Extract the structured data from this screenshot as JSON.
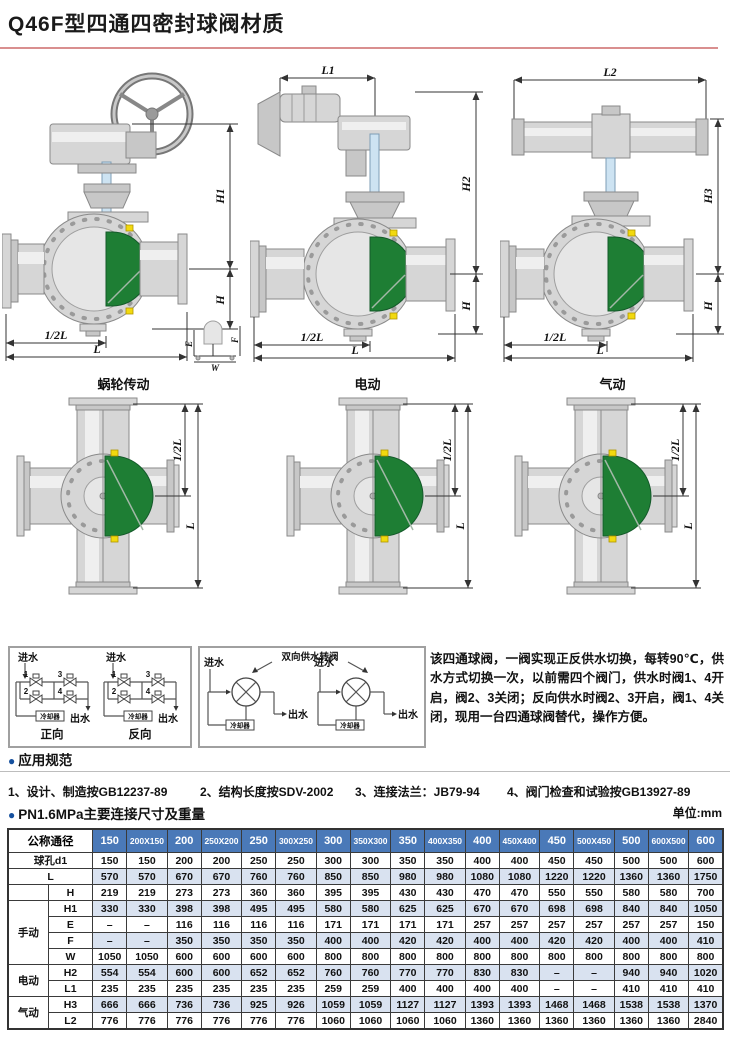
{
  "page": {
    "title": "Q46F型四通四密封球阀材质"
  },
  "colors": {
    "accent_red_line": "#d98f8f",
    "bullet_blue": "#15509e",
    "table_header_blue": "#4a79b8",
    "table_shaded_row": "#d9e2f0",
    "ball_green": "#1e7e34",
    "seal_yellow": "#f2d90f"
  },
  "valves": {
    "worm": {
      "caption": "蜗轮传动",
      "dim_h1": "H1",
      "dim_h": "H",
      "dim_half_l": "1/2L",
      "dim_l": "L",
      "dim_e": "E",
      "dim_f": "F",
      "dim_w": "W"
    },
    "electric": {
      "caption": "电动",
      "dim_l1": "L1",
      "dim_h2": "H2",
      "dim_h": "H",
      "dim_half_l": "1/2L",
      "dim_l": "L"
    },
    "pneumatic": {
      "caption": "气动",
      "dim_l2": "L2",
      "dim_h3": "H3",
      "dim_h": "H",
      "dim_half_l": "1/2L",
      "dim_l": "L"
    },
    "cross": {
      "dim_half_l": "1/2L",
      "dim_l": "L"
    }
  },
  "flow_left": {
    "inlet": "进水",
    "outlet": "出水",
    "cooler": "冷却器",
    "v1": "1",
    "v2": "2",
    "v3": "3",
    "v4": "4",
    "forward": "正向",
    "reverse": "反向"
  },
  "flow_mid": {
    "title": "双向供水转阀",
    "inlet": "进水",
    "outlet": "出水",
    "cooler": "冷却器"
  },
  "description": "该四通球阀，一阀实现正反供水切换，每转90℃，供水方式切换一次，以前需四个阀门，供水时阀1、4开启，阀2、3关闭；反向供水时阀2、3开启，阀1、4关闭，现用一台四通球阀替代，操作方便。",
  "application": {
    "bullet": "●",
    "heading": "应用规范",
    "items": [
      "1、设计、制造按GB12237-89",
      "2、结构长度按SDV-2002",
      "3、连接法兰：JB79-94",
      "4、阀门检查和试验按GB13927-89"
    ]
  },
  "table_section": {
    "bullet": "●",
    "heading": "PN1.6MPa主要连接尺寸及重量",
    "unit": "单位:mm"
  },
  "table": {
    "header_label": "公称通径",
    "columns": [
      "150",
      "200X150",
      "200",
      "250X200",
      "250",
      "300X250",
      "300",
      "350X300",
      "350",
      "400X350",
      "400",
      "450X400",
      "450",
      "500X450",
      "500",
      "600X500",
      "600"
    ],
    "rows": [
      {
        "label": "球孔d1",
        "span": 2,
        "shaded": false,
        "values": [
          "150",
          "150",
          "200",
          "200",
          "250",
          "250",
          "300",
          "300",
          "350",
          "350",
          "400",
          "400",
          "450",
          "450",
          "500",
          "500",
          "600"
        ]
      },
      {
        "label": "L",
        "span": 2,
        "shaded": true,
        "values": [
          "570",
          "570",
          "670",
          "670",
          "760",
          "760",
          "850",
          "850",
          "980",
          "980",
          "1080",
          "1080",
          "1220",
          "1220",
          "1360",
          "1360",
          "1750"
        ]
      },
      {
        "label": "H",
        "span": 1,
        "lead": {
          "type": "empty"
        },
        "shaded": false,
        "values": [
          "219",
          "219",
          "273",
          "273",
          "360",
          "360",
          "395",
          "395",
          "430",
          "430",
          "470",
          "470",
          "550",
          "550",
          "580",
          "580",
          "700"
        ]
      },
      {
        "label": "H1",
        "span": 1,
        "lead": {
          "type": "group",
          "text": "手动",
          "rows": 4
        },
        "shaded": true,
        "values": [
          "330",
          "330",
          "398",
          "398",
          "495",
          "495",
          "580",
          "580",
          "625",
          "625",
          "670",
          "670",
          "698",
          "698",
          "840",
          "840",
          "1050"
        ]
      },
      {
        "label": "E",
        "span": 1,
        "shaded": false,
        "values": [
          "–",
          "–",
          "116",
          "116",
          "116",
          "116",
          "171",
          "171",
          "171",
          "171",
          "257",
          "257",
          "257",
          "257",
          "257",
          "257",
          "150"
        ]
      },
      {
        "label": "F",
        "span": 1,
        "shaded": true,
        "values": [
          "–",
          "–",
          "350",
          "350",
          "350",
          "350",
          "400",
          "400",
          "420",
          "420",
          "400",
          "400",
          "420",
          "420",
          "400",
          "400",
          "410"
        ]
      },
      {
        "label": "W",
        "span": 1,
        "shaded": false,
        "values": [
          "1050",
          "1050",
          "600",
          "600",
          "600",
          "600",
          "800",
          "800",
          "800",
          "800",
          "800",
          "800",
          "800",
          "800",
          "800",
          "800",
          "800"
        ]
      },
      {
        "label": "H2",
        "span": 1,
        "lead": {
          "type": "group",
          "text": "电动",
          "rows": 2
        },
        "shaded": true,
        "values": [
          "554",
          "554",
          "600",
          "600",
          "652",
          "652",
          "760",
          "760",
          "770",
          "770",
          "830",
          "830",
          "–",
          "–",
          "940",
          "940",
          "1020"
        ]
      },
      {
        "label": "L1",
        "span": 1,
        "shaded": false,
        "values": [
          "235",
          "235",
          "235",
          "235",
          "235",
          "235",
          "259",
          "259",
          "400",
          "400",
          "400",
          "400",
          "–",
          "–",
          "410",
          "410",
          "410"
        ]
      },
      {
        "label": "H3",
        "span": 1,
        "lead": {
          "type": "group",
          "text": "气动",
          "rows": 2
        },
        "shaded": true,
        "values": [
          "666",
          "666",
          "736",
          "736",
          "925",
          "926",
          "1059",
          "1059",
          "1127",
          "1127",
          "1393",
          "1393",
          "1468",
          "1468",
          "1538",
          "1538",
          "1370"
        ]
      },
      {
        "label": "L2",
        "span": 1,
        "shaded": false,
        "values": [
          "776",
          "776",
          "776",
          "776",
          "776",
          "776",
          "1060",
          "1060",
          "1060",
          "1060",
          "1360",
          "1360",
          "1360",
          "1360",
          "1360",
          "1360",
          "2840"
        ]
      }
    ]
  }
}
